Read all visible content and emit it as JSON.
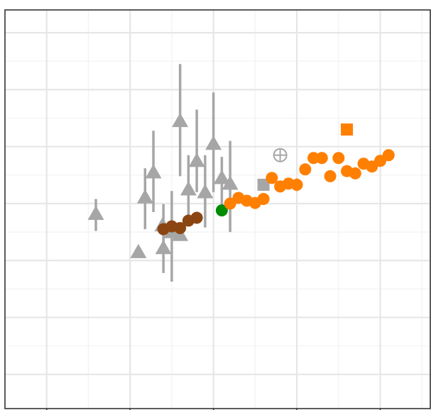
{
  "chart_data": {
    "type": "scatter",
    "title": "",
    "xlabel": "",
    "ylabel": "",
    "grid": true,
    "legend": "none",
    "xlim": [
      -2.5,
      2.6
    ],
    "ylim": [
      -3.6,
      3.4
    ],
    "x_ticks": [
      -2,
      -1,
      0,
      1,
      2
    ],
    "y_ticks": [
      -3,
      -2,
      -1,
      0,
      1,
      2,
      3
    ],
    "colors": {
      "gray": "#a6a6a6",
      "orange": "#ff7f00",
      "brown": "#8b4513",
      "green": "#008b00",
      "grid_major": "#e6e6e6",
      "grid_minor": "#f2f2f2",
      "frame": "#333333"
    },
    "series": [
      {
        "marker": "triangle",
        "color": "#a6a6a6",
        "points": [
          {
            "x": -1.41,
            "y": -0.18,
            "lo": -0.48,
            "hi": 0.08
          },
          {
            "x": -0.9,
            "y": -0.85
          },
          {
            "x": -0.82,
            "y": 0.11,
            "lo": -0.45,
            "hi": 0.62
          },
          {
            "x": -0.72,
            "y": 0.55,
            "lo": -0.15,
            "hi": 1.28
          },
          {
            "x": -0.61,
            "y": -0.38
          },
          {
            "x": -0.6,
            "y": -0.78,
            "lo": -1.22,
            "hi": -0.01
          },
          {
            "x": -0.5,
            "y": -0.5,
            "lo": -1.37,
            "hi": 0.22
          },
          {
            "x": -0.4,
            "y": -0.55
          },
          {
            "x": -0.4,
            "y": 1.45,
            "lo": 0.48,
            "hi": 2.45
          },
          {
            "x": -0.3,
            "y": 0.25,
            "lo": -0.25,
            "hi": 0.85
          },
          {
            "x": -0.2,
            "y": 0.75,
            "lo": 0.2,
            "hi": 1.65
          },
          {
            "x": -0.1,
            "y": 0.2,
            "lo": -0.42,
            "hi": 0.85
          },
          {
            "x": 0.0,
            "y": 1.05,
            "lo": 0.2,
            "hi": 1.95
          },
          {
            "x": 0.1,
            "y": 0.45,
            "lo": -0.05,
            "hi": 0.82
          },
          {
            "x": 0.2,
            "y": 0.35,
            "lo": -0.5,
            "hi": 1.1
          }
        ]
      },
      {
        "marker": "square",
        "color": "#a6a6a6",
        "points": [
          {
            "x": 0.6,
            "y": 0.33
          }
        ]
      },
      {
        "marker": "crossed-circle",
        "color": "#a6a6a6",
        "points": [
          {
            "x": 0.8,
            "y": 0.85
          }
        ]
      },
      {
        "marker": "circle",
        "color": "#8b4513",
        "points": [
          {
            "x": -0.6,
            "y": -0.45
          },
          {
            "x": -0.5,
            "y": -0.4
          },
          {
            "x": -0.4,
            "y": -0.43
          },
          {
            "x": -0.3,
            "y": -0.3
          },
          {
            "x": -0.2,
            "y": -0.25
          }
        ]
      },
      {
        "marker": "circle",
        "color": "#008b00",
        "points": [
          {
            "x": 0.1,
            "y": -0.12
          }
        ]
      },
      {
        "marker": "circle",
        "color": "#ff7f00",
        "points": [
          {
            "x": 0.2,
            "y": 0.0
          },
          {
            "x": 0.3,
            "y": 0.1
          },
          {
            "x": 0.4,
            "y": 0.05
          },
          {
            "x": 0.5,
            "y": 0.01
          },
          {
            "x": 0.6,
            "y": 0.08
          },
          {
            "x": 0.7,
            "y": 0.45,
            "lo": 0.35,
            "hi": 0.55
          },
          {
            "x": 0.8,
            "y": 0.3
          },
          {
            "x": 0.9,
            "y": 0.35
          },
          {
            "x": 1.0,
            "y": 0.33,
            "lo": 0.22,
            "hi": 0.44
          },
          {
            "x": 1.1,
            "y": 0.6
          },
          {
            "x": 1.2,
            "y": 0.8
          },
          {
            "x": 1.3,
            "y": 0.8
          },
          {
            "x": 1.4,
            "y": 0.48
          },
          {
            "x": 1.5,
            "y": 0.8
          },
          {
            "x": 1.6,
            "y": 0.57
          },
          {
            "x": 1.7,
            "y": 0.53
          },
          {
            "x": 1.8,
            "y": 0.7
          },
          {
            "x": 1.9,
            "y": 0.65,
            "lo": 0.55,
            "hi": 0.75
          },
          {
            "x": 2.0,
            "y": 0.75
          },
          {
            "x": 2.1,
            "y": 0.85
          }
        ]
      },
      {
        "marker": "square",
        "color": "#ff7f00",
        "points": [
          {
            "x": 1.6,
            "y": 1.3
          }
        ]
      }
    ]
  }
}
